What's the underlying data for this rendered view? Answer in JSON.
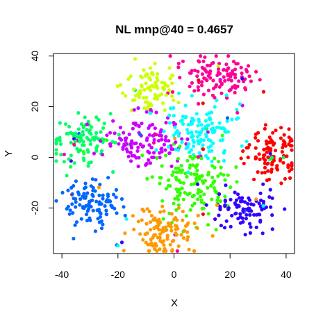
{
  "chart_data": {
    "type": "scatter",
    "title": "NL mnp@40 = 0.4657",
    "xlabel": "X",
    "ylabel": "Y",
    "xlim": [
      -43,
      43
    ],
    "ylim": [
      -38,
      41
    ],
    "xticks": [
      -40,
      -20,
      0,
      20,
      40
    ],
    "yticks": [
      -20,
      0,
      20,
      40
    ],
    "grid": false,
    "legend": "none",
    "series": [
      {
        "color": "#ccff00",
        "center": [
          -8,
          28
        ],
        "spread": [
          5,
          5
        ],
        "count": 90
      },
      {
        "color": "#ff0099",
        "center": [
          14,
          32
        ],
        "spread": [
          6,
          5
        ],
        "count": 120
      },
      {
        "color": "#00ff66",
        "center": [
          -33,
          7
        ],
        "spread": [
          5,
          5
        ],
        "count": 110
      },
      {
        "color": "#cc00ff",
        "center": [
          -10,
          6
        ],
        "spread": [
          7,
          5
        ],
        "count": 130
      },
      {
        "color": "#00ffff",
        "center": [
          11,
          10
        ],
        "spread": [
          7,
          6
        ],
        "count": 130
      },
      {
        "color": "#ff0000",
        "center": [
          34,
          1
        ],
        "spread": [
          5,
          5
        ],
        "count": 110
      },
      {
        "color": "#33ff00",
        "center": [
          7,
          -11
        ],
        "spread": [
          7,
          7
        ],
        "count": 140
      },
      {
        "color": "#0066ff",
        "center": [
          -29,
          -18
        ],
        "spread": [
          5,
          5
        ],
        "count": 110
      },
      {
        "color": "#3300ff",
        "center": [
          25,
          -20
        ],
        "spread": [
          6,
          4
        ],
        "count": 100
      },
      {
        "color": "#ff9900",
        "center": [
          -4,
          -29
        ],
        "spread": [
          6,
          5
        ],
        "count": 120
      }
    ]
  }
}
